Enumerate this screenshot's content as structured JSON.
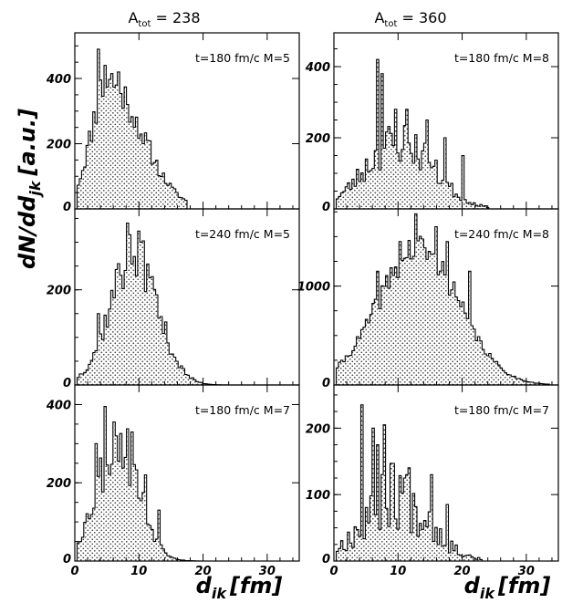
{
  "figure": {
    "ylabel": "dN/dd",
    "ylabel_sub": "jk",
    "ylabel_unit": "[a.u.]",
    "xlabel": "d",
    "xlabel_sub": "ik",
    "xlabel_unit": "[fm]"
  },
  "columns": [
    {
      "title": "A",
      "title_sub": "tot",
      "title_rest": " = 238"
    },
    {
      "title": "A",
      "title_sub": "tot",
      "title_rest": " = 360"
    }
  ],
  "chart_data": [
    {
      "type": "histogram",
      "label": "t=180 fm/c M=5",
      "xlim": [
        0,
        35
      ],
      "ylim": [
        0,
        540
      ],
      "xticks": [
        0,
        10,
        20,
        30
      ],
      "yticks": [
        0,
        200,
        400
      ],
      "bin_width": 0.35,
      "peak_x": 5.0,
      "sigma": 2.6,
      "amplitude": 395,
      "skew": 1.0,
      "spikes": [
        [
          3.5,
          490
        ],
        [
          4.6,
          440
        ],
        [
          5.5,
          415
        ],
        [
          6.6,
          420
        ],
        [
          8.0,
          320
        ],
        [
          10.5,
          200
        ],
        [
          13.5,
          110
        ]
      ],
      "noise": 0.18,
      "xmax": 17.2,
      "seed": 11
    },
    {
      "type": "histogram",
      "label": "t=180 fm/c M=8",
      "xlim": [
        0,
        35
      ],
      "ylim": [
        0,
        495
      ],
      "xticks": [
        0,
        10,
        20,
        30
      ],
      "yticks": [
        0,
        200,
        400
      ],
      "bin_width": 0.35,
      "peak_x": 10.0,
      "sigma": 5.2,
      "amplitude": 190,
      "skew": 0,
      "spikes": [
        [
          6.5,
          420
        ],
        [
          7.3,
          380
        ],
        [
          9.3,
          280
        ],
        [
          11.3,
          280
        ],
        [
          14.5,
          250
        ],
        [
          17.0,
          200
        ],
        [
          20.0,
          150
        ]
      ],
      "noise": 0.35,
      "xmax": 24.0,
      "seed": 23
    },
    {
      "type": "histogram",
      "label": "t=240 fm/c M=5",
      "xlim": [
        0,
        35
      ],
      "ylim": [
        0,
        370
      ],
      "xticks": [
        0,
        10,
        20,
        30
      ],
      "yticks": [
        0,
        200
      ],
      "bin_width": 0.35,
      "peak_x": 9.0,
      "sigma": 3.7,
      "amplitude": 272,
      "skew": 0,
      "spikes": [
        [
          8.2,
          340
        ],
        [
          9.0,
          270
        ],
        [
          6.6,
          255
        ],
        [
          10.3,
          300
        ],
        [
          11.5,
          225
        ],
        [
          3.5,
          150
        ]
      ],
      "noise": 0.22,
      "xmax": 24.5,
      "seed": 37
    },
    {
      "type": "histogram",
      "label": "t=240 fm/c M=8",
      "xlim": [
        0,
        35
      ],
      "ylim": [
        0,
        1780
      ],
      "xticks": [
        0,
        10,
        20,
        30
      ],
      "yticks": [
        0,
        1000
      ],
      "bin_width": 0.35,
      "peak_x": 13.0,
      "sigma": 6.3,
      "amplitude": 1380,
      "skew": 0,
      "spikes": [
        [
          12.6,
          1730
        ],
        [
          15.6,
          1600
        ],
        [
          10.0,
          1450
        ],
        [
          17.5,
          1450
        ],
        [
          21.0,
          1150
        ],
        [
          6.8,
          1150
        ]
      ],
      "noise": 0.12,
      "xmax": 33.5,
      "seed": 41
    },
    {
      "type": "histogram",
      "label": "t=180 fm/c M=7",
      "xlim": [
        0,
        35
      ],
      "ylim": [
        0,
        450
      ],
      "xticks": [
        0,
        10,
        20,
        30
      ],
      "yticks": [
        0,
        200,
        400
      ],
      "bin_width": 0.35,
      "peak_x": 6.5,
      "sigma": 3.3,
      "amplitude": 305,
      "skew": 0,
      "spikes": [
        [
          4.6,
          395
        ],
        [
          3.3,
          300
        ],
        [
          6.2,
          320
        ],
        [
          8.6,
          330
        ],
        [
          11.0,
          220
        ],
        [
          13.0,
          130
        ]
      ],
      "noise": 0.28,
      "xmax": 19.5,
      "seed": 53
    },
    {
      "type": "histogram",
      "label": "t=180 fm/c M=7",
      "xlim": [
        0,
        35
      ],
      "ylim": [
        0,
        265
      ],
      "xticks": [
        0,
        10,
        20,
        30
      ],
      "yticks": [
        0,
        100,
        200
      ],
      "bin_width": 0.35,
      "peak_x": 9.5,
      "sigma": 5.0,
      "amplitude": 105,
      "skew": 0,
      "spikes": [
        [
          4.3,
          235
        ],
        [
          5.8,
          200
        ],
        [
          7.6,
          205
        ],
        [
          6.6,
          175
        ],
        [
          11.3,
          130
        ],
        [
          15.0,
          130
        ],
        [
          17.5,
          85
        ]
      ],
      "noise": 0.55,
      "xmax": 22.8,
      "seed": 67
    }
  ]
}
